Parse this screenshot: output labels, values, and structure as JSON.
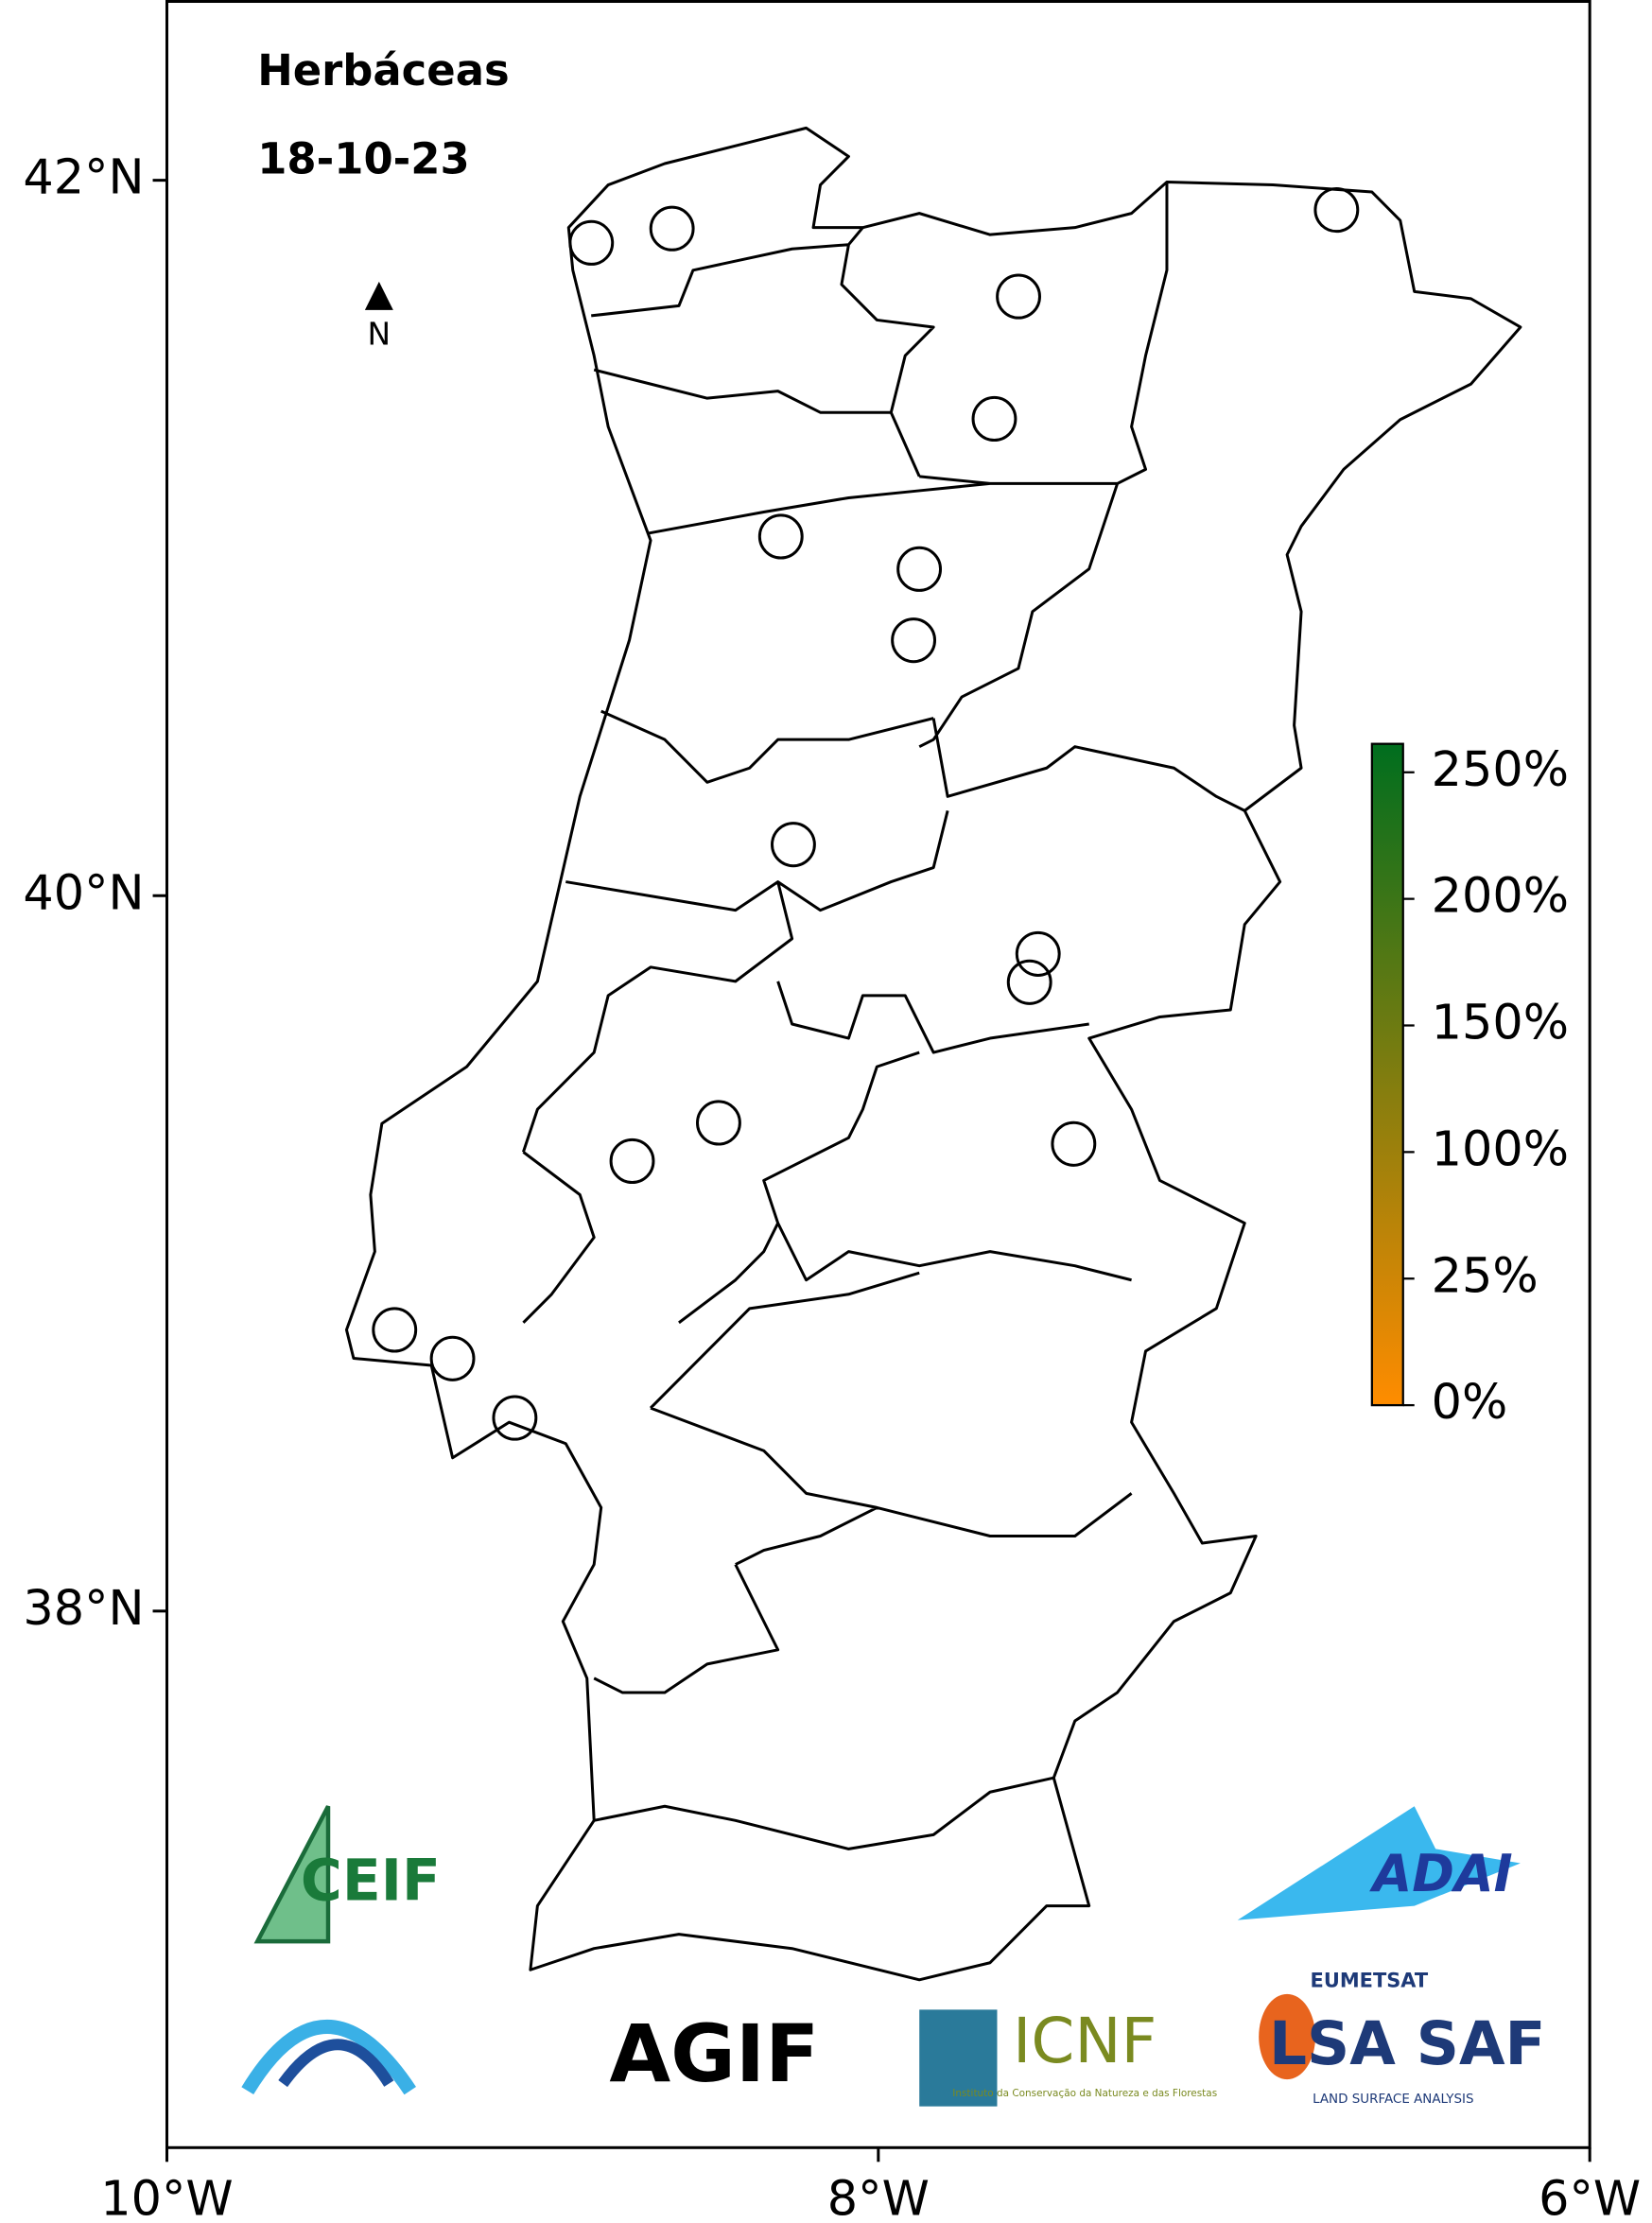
{
  "chart_data": {
    "type": "map",
    "title": "Herbáceas",
    "subtitle": "18-10-23",
    "north_label": "N",
    "xlim": [
      -10,
      -6
    ],
    "ylim": [
      36.5,
      42.5
    ],
    "xticks": [
      {
        "value": -10,
        "label": "10°W"
      },
      {
        "value": -8,
        "label": "8°W"
      },
      {
        "value": -6,
        "label": "6°W"
      }
    ],
    "yticks": [
      {
        "value": 38,
        "label": "38°N"
      },
      {
        "value": 40,
        "label": "40°N"
      },
      {
        "value": 42,
        "label": "42°N"
      }
    ],
    "marker_color": "#000000",
    "x": [
      -8.807,
      -8.58,
      -7.606,
      -7.674,
      -6.712,
      -8.274,
      -7.885,
      -7.901,
      -8.239,
      -7.551,
      -7.575,
      -8.692,
      -8.449,
      -7.451,
      -9.36,
      -9.197,
      -9.022
    ],
    "y": [
      41.825,
      41.865,
      41.675,
      41.333,
      41.917,
      41.004,
      40.913,
      40.714,
      40.143,
      39.837,
      39.758,
      39.258,
      39.365,
      39.306,
      38.786,
      38.706,
      38.54
    ],
    "colorbar": {
      "colors": [
        "#ff8c00",
        "#006e1e"
      ],
      "ticks": [
        {
          "value": 0,
          "label": "0%"
        },
        {
          "value": 25,
          "label": "25%"
        },
        {
          "value": 100,
          "label": "100%"
        },
        {
          "value": 150,
          "label": "150%"
        },
        {
          "value": 200,
          "label": "200%"
        },
        {
          "value": 250,
          "label": "250%"
        }
      ]
    },
    "logos": [
      "CEIF",
      "AGIF",
      "ICNF",
      "Instituto da Conservação da Natureza e das Florestas",
      "EUMETSAT",
      "LSA SAF",
      "LAND SURFACE ANALYSIS",
      "ADAI"
    ]
  }
}
